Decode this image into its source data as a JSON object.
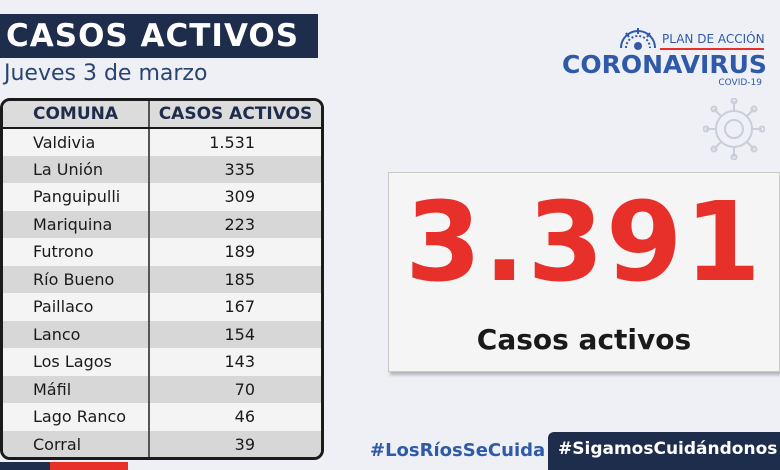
{
  "header": {
    "title": "CASOS ACTIVOS",
    "date": "Jueves 3 de marzo"
  },
  "table": {
    "columns": [
      "COMUNA",
      "CASOS ACTIVOS"
    ],
    "rows": [
      {
        "comuna": "Valdivia",
        "casos": "1.531"
      },
      {
        "comuna": "La Unión",
        "casos": "335"
      },
      {
        "comuna": "Panguipulli",
        "casos": "309"
      },
      {
        "comuna": "Mariquina",
        "casos": "223"
      },
      {
        "comuna": "Futrono",
        "casos": "189"
      },
      {
        "comuna": "Río Bueno",
        "casos": "185"
      },
      {
        "comuna": "Paillaco",
        "casos": "167"
      },
      {
        "comuna": "Lanco",
        "casos": "154"
      },
      {
        "comuna": "Los Lagos",
        "casos": "143"
      },
      {
        "comuna": "Máfil",
        "casos": "70"
      },
      {
        "comuna": "Lago Ranco",
        "casos": "46"
      },
      {
        "comuna": "Corral",
        "casos": "39"
      }
    ]
  },
  "logo": {
    "plan": "PLAN DE ACCIÓN",
    "name": "CORONAVIRUS",
    "sub": "COVID-19",
    "emblem_icon": "government-emblem-icon"
  },
  "total": {
    "value": "3.391",
    "caption": "Casos activos"
  },
  "hashtags": {
    "regional": "#LosRíosSeCuida",
    "national": "#SigamosCuidándonos"
  },
  "colors": {
    "navy": "#1f2d4d",
    "accent_red": "#e8302a",
    "brand_blue": "#2e5aa8"
  }
}
